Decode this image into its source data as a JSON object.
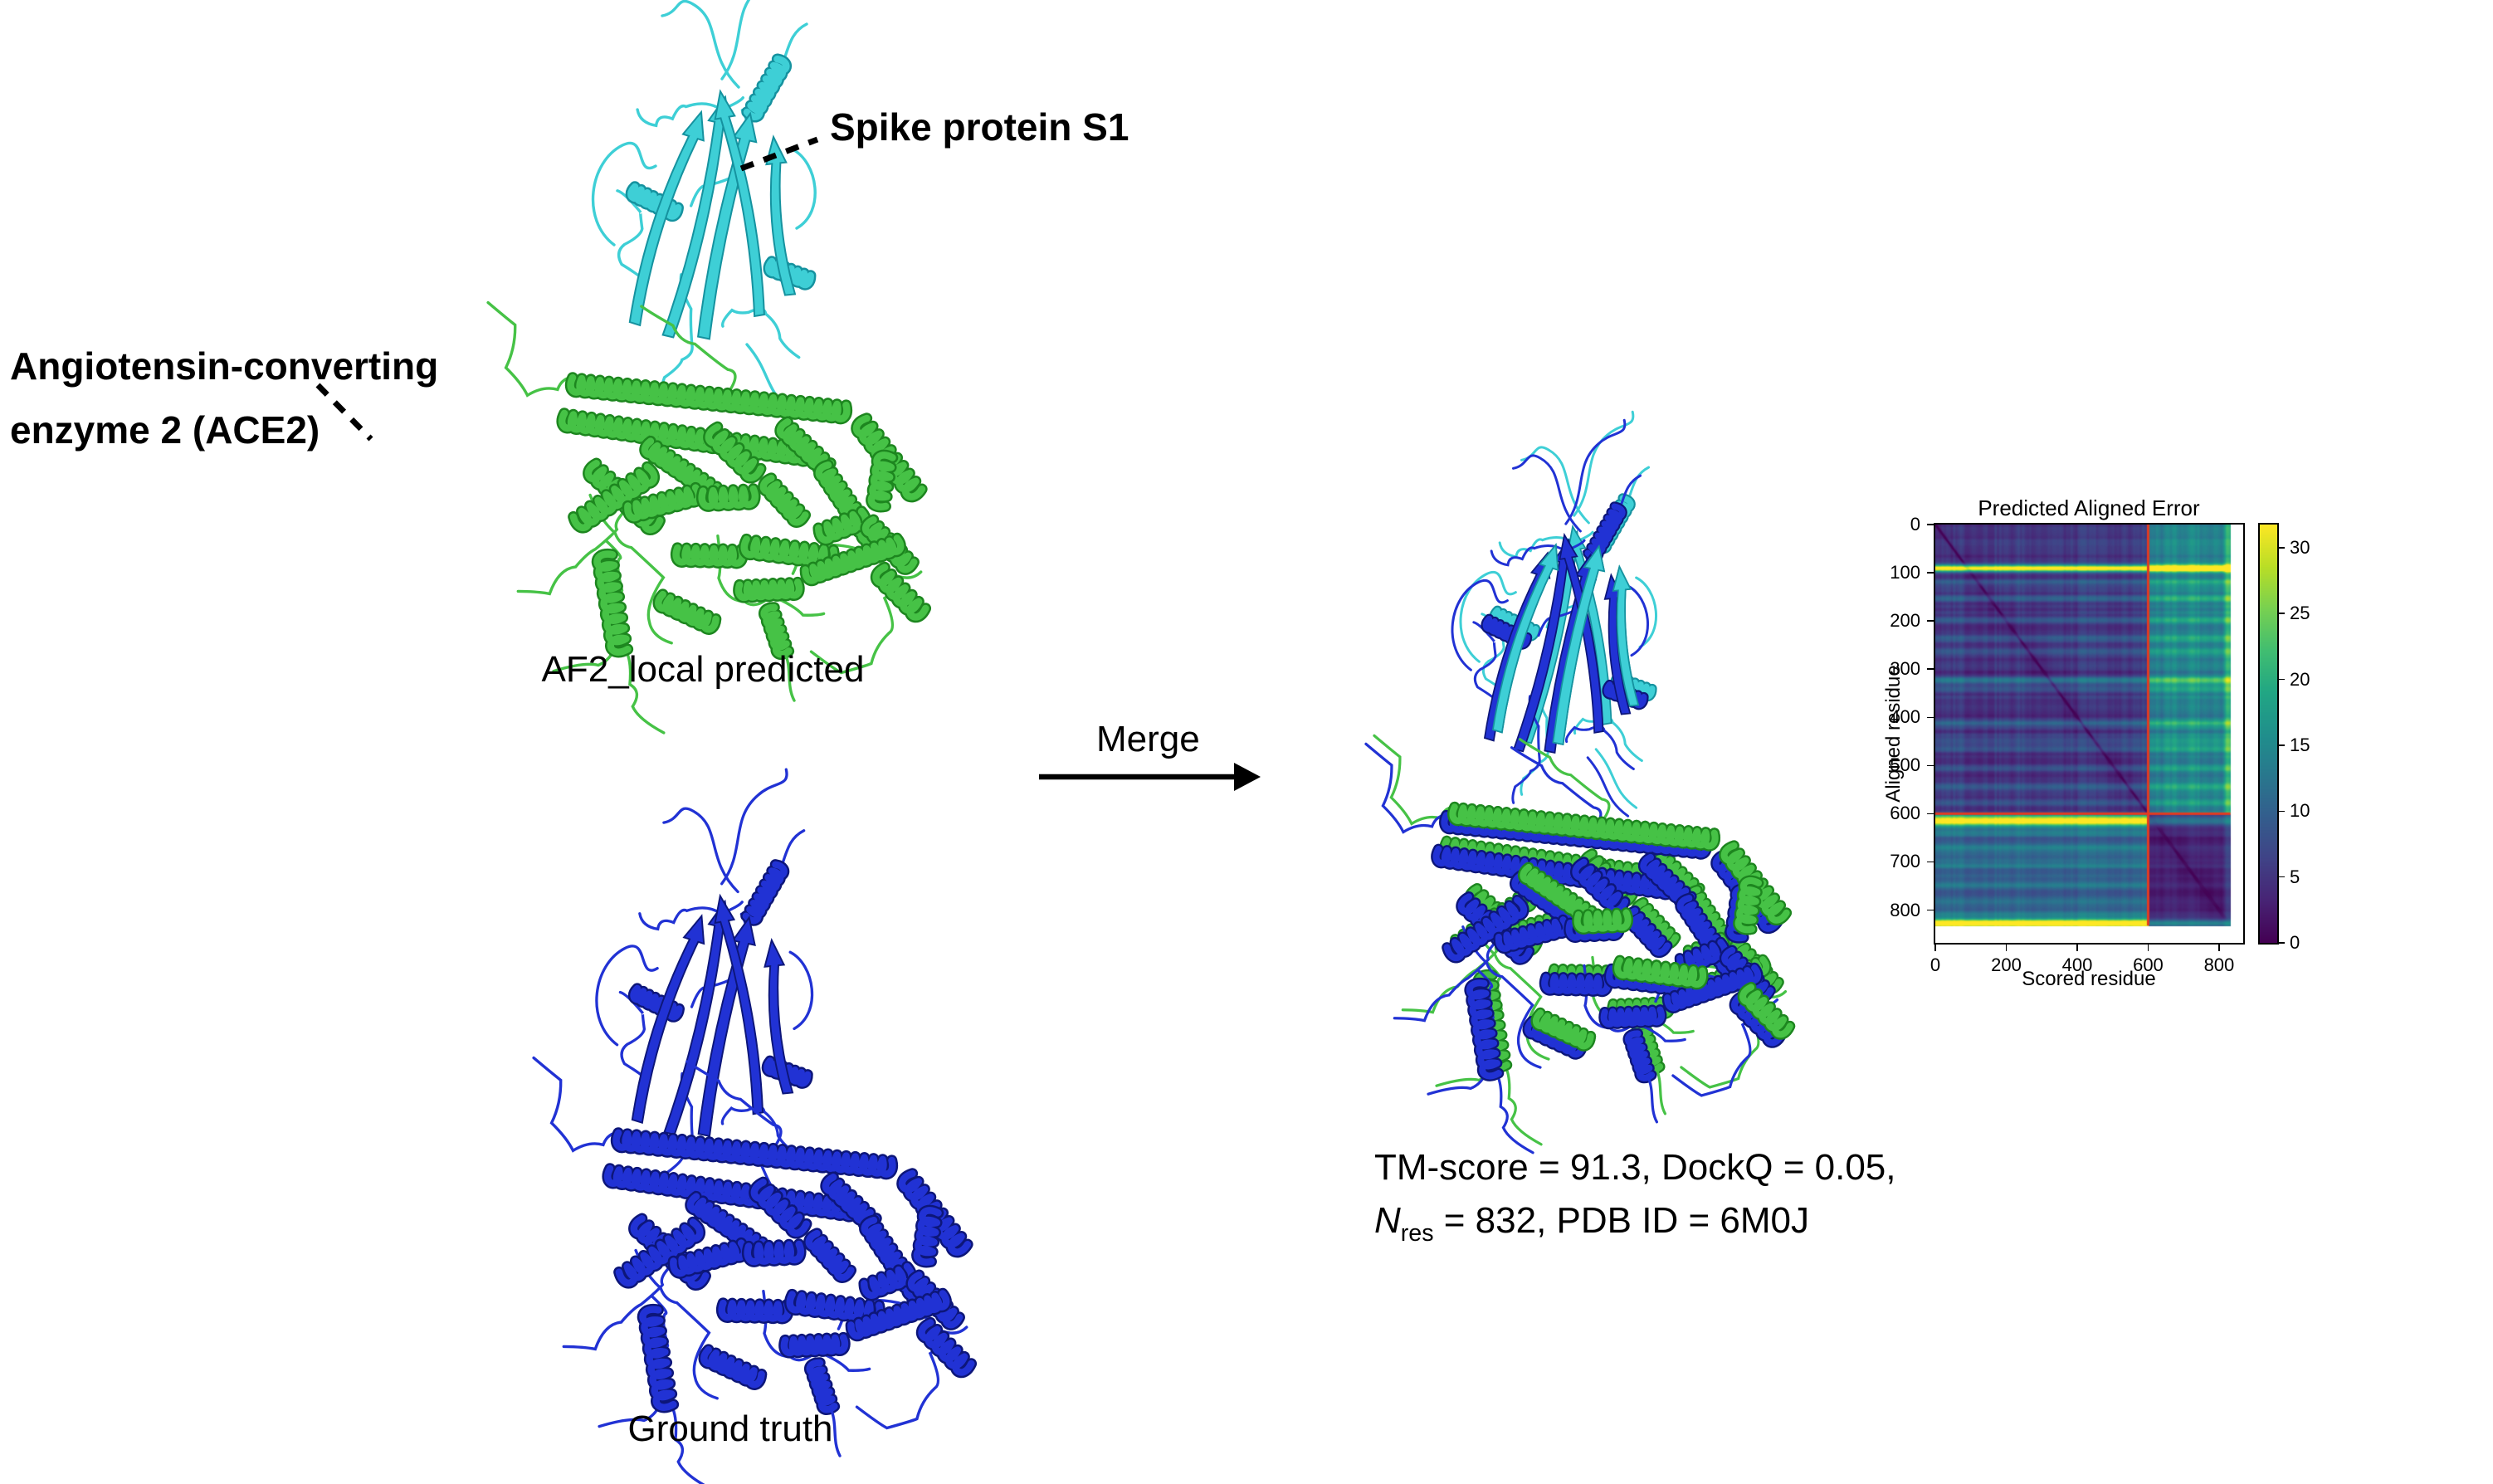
{
  "figure": {
    "annotations": {
      "spike_label": "Spike protein S1",
      "ace2_label_line1": "Angiotensin-converting",
      "ace2_label_line2": "enzyme 2 (ACE2)",
      "predicted_caption": "AF2_local predicted",
      "ground_truth_caption": "Ground truth",
      "merge_label": "Merge",
      "stats_line1": "TM-score = 91.3, DockQ = 0.05,",
      "stats_n": "N",
      "stats_n_sub": "res",
      "stats_line2_rest": " = 832, PDB ID = 6M0J"
    },
    "colors": {
      "spike_chain": "#3ecfd6",
      "spike_chain_dark": "#15929f",
      "ace2_chain": "#46c246",
      "ace2_chain_dark": "#1d861f",
      "ground_truth_chain": "#2132d4",
      "ground_truth_chain_dark": "#0d1679",
      "text": "#000000",
      "background": "#ffffff"
    }
  },
  "chart_data": {
    "type": "heatmap",
    "title": "Predicted Aligned Error",
    "xlabel": "Scored residue",
    "ylabel": "Aligned residue",
    "x_ticks": [
      0,
      200,
      400,
      600,
      800
    ],
    "y_ticks": [
      0,
      100,
      200,
      300,
      400,
      500,
      600,
      700,
      800
    ],
    "axis_limit": 868,
    "n_residues": 832,
    "chain_boundary": 600,
    "colormap": "viridis",
    "vmin": 0,
    "vmax": 31.75,
    "colorbar_ticks": [
      0,
      5,
      10,
      15,
      20,
      25,
      30
    ],
    "legend_position": "right-colorbar",
    "grid": false,
    "crosshair_color": "#e23b22",
    "block_mean_pae": {
      "chain1_intra": 3.5,
      "chain2_intra": 2.2,
      "chain2_scored_vs_chain1_aligned": 14.5,
      "chain1_scored_vs_chain2_aligned": 9.0
    },
    "high_error_rows": [
      90,
      614,
      827
    ],
    "high_error_col": 824
  }
}
